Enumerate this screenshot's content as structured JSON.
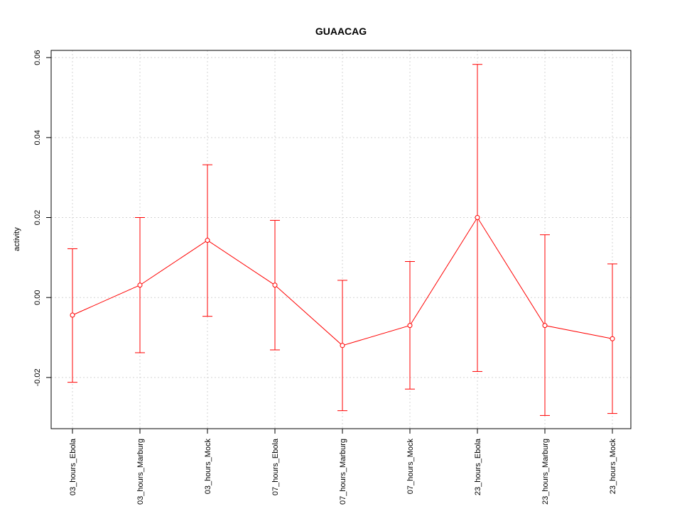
{
  "chart_data": {
    "type": "line",
    "title": "GUAACAG",
    "xlabel": "",
    "ylabel": "activity",
    "categories": [
      "03_hours_Ebola",
      "03_hours_Marburg",
      "03_hours_Mock",
      "07_hours_Ebola",
      "07_hours_Marburg",
      "07_hours_Mock",
      "23_hours_Ebola",
      "23_hours_Marburg",
      "23_hours_Mock"
    ],
    "series": [
      {
        "values": [
          -0.0044,
          0.0031,
          0.0143,
          0.0031,
          -0.012,
          -0.007,
          0.02,
          -0.007,
          -0.0103
        ],
        "error_lower": [
          -0.0212,
          -0.0138,
          -0.0047,
          -0.0131,
          -0.0283,
          -0.0229,
          -0.0185,
          -0.0295,
          -0.029
        ],
        "error_upper": [
          0.0122,
          0.02,
          0.0332,
          0.0193,
          0.0043,
          0.009,
          0.0583,
          0.0157,
          0.0084
        ],
        "color": "#ff0000"
      }
    ],
    "ylim": [
      -0.0328,
      0.0618
    ],
    "yticks": [
      -0.02,
      0.0,
      0.02,
      0.04,
      0.06
    ],
    "ytick_labels": [
      "-0.02",
      "0.00",
      "0.02",
      "0.04",
      "0.06"
    ],
    "grid": true,
    "grid_color": "#d3d3d3",
    "legend": "none"
  }
}
